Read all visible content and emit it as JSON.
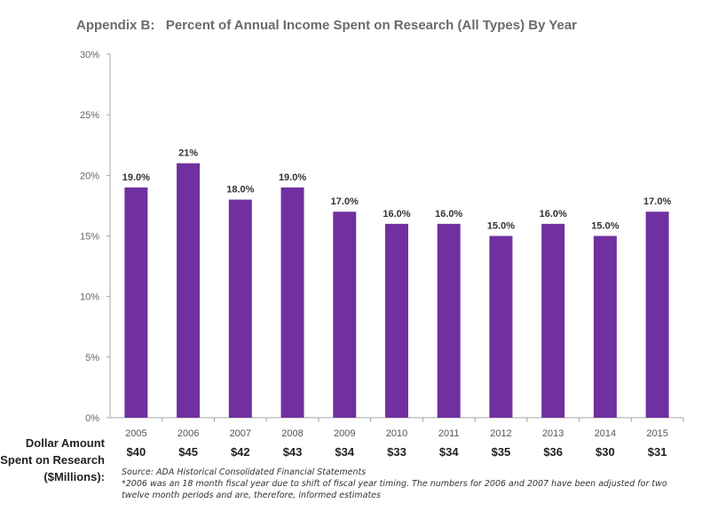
{
  "title": "Appendix B:   Percent of Annual Income Spent on Research (All Types) By Year",
  "colors": {
    "bar": "#7030a0",
    "axis": "#a6a6a6"
  },
  "chart_data": {
    "type": "bar",
    "title": "Appendix B:   Percent of Annual Income Spent on Research (All Types) By Year",
    "categories": [
      "2005",
      "2006",
      "2007",
      "2008",
      "2009",
      "2010",
      "2011",
      "2012",
      "2013",
      "2014",
      "2015"
    ],
    "values": [
      19.0,
      21,
      18.0,
      19.0,
      17.0,
      16.0,
      16.0,
      15.0,
      16.0,
      15.0,
      17.0
    ],
    "data_labels": [
      "19.0%",
      "21%",
      "18.0%",
      "19.0%",
      "17.0%",
      "16.0%",
      "16.0%",
      "15.0%",
      "16.0%",
      "15.0%",
      "17.0%"
    ],
    "ylim": [
      0,
      30
    ],
    "yticks": [
      "0%",
      "5%",
      "10%",
      "15%",
      "20%",
      "25%",
      "30%"
    ],
    "grid": false,
    "legend": "none"
  },
  "dollar_row": {
    "caption_lines": [
      "Dollar Amount",
      "Spent on Research",
      "($Millions):"
    ],
    "values": [
      "$40",
      "$45",
      "$42",
      "$43",
      "$34",
      "$33",
      "$34",
      "$35",
      "$36",
      "$30",
      "$31"
    ]
  },
  "footnote_lines": [
    "Source: ADA Historical Consolidated Financial Statements",
    "*2006  was an 18 month fiscal year due to shift of fiscal year timing.  The numbers for 2006  and 2007  have been adjusted for two",
    "twelve month periods and are, therefore, informed estimates"
  ]
}
